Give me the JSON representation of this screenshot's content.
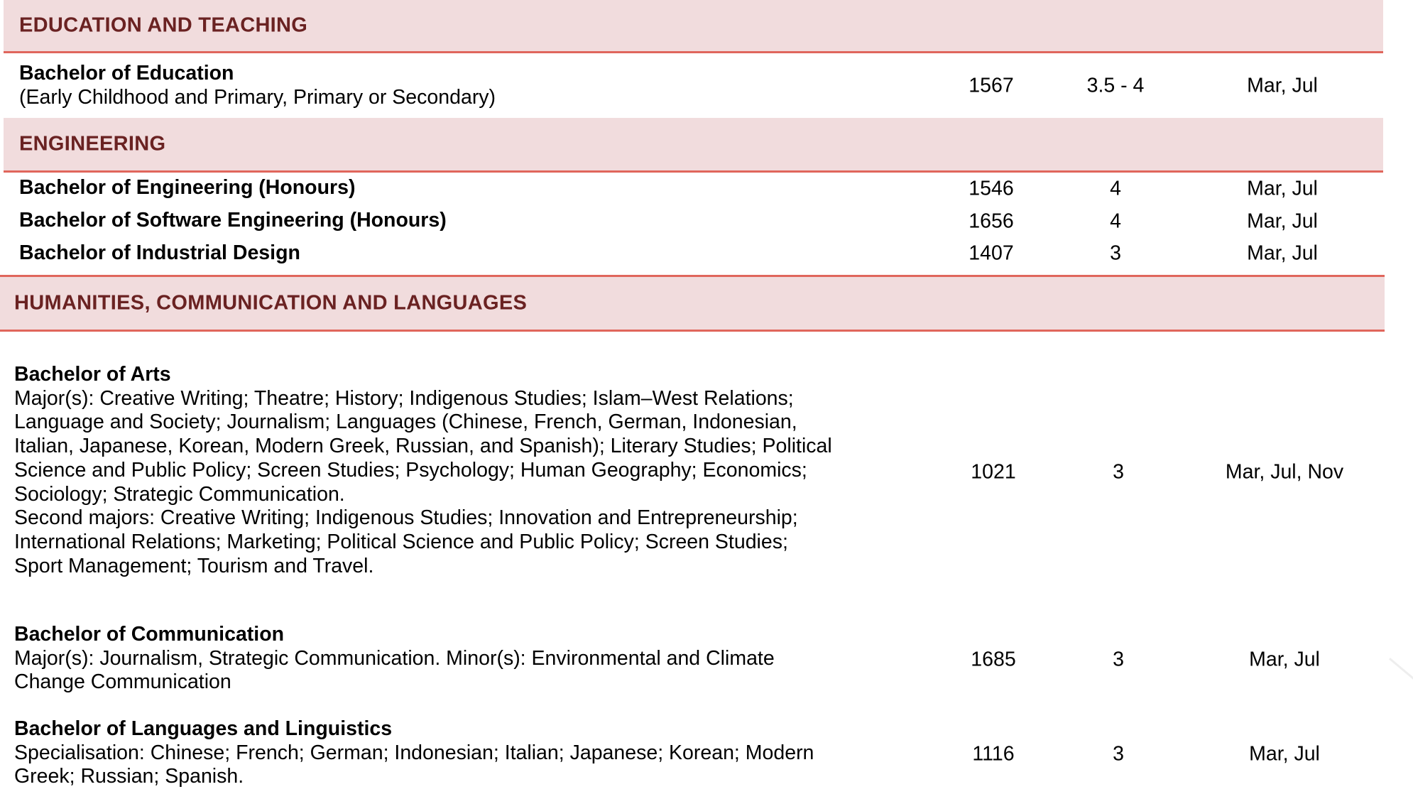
{
  "sections": [
    {
      "title": "EDUCATION AND TEACHING"
    },
    {
      "title": "ENGINEERING"
    },
    {
      "title": "HUMANITIES, COMMUNICATION AND LANGUAGES"
    }
  ],
  "rows": {
    "bed": {
      "name": "Bachelor of Education",
      "detail": "(Early Childhood and Primary, Primary or Secondary)",
      "code": "1567",
      "years": "3.5 - 4",
      "intake": "Mar, Jul"
    },
    "beng": {
      "name": "Bachelor of Engineering (Honours)",
      "code": "1546",
      "years": "4",
      "intake": "Mar, Jul"
    },
    "bse": {
      "name": "Bachelor of Software Engineering (Honours)",
      "code": "1656",
      "years": "4",
      "intake": "Mar, Jul"
    },
    "bid": {
      "name": "Bachelor of Industrial Design",
      "code": "1407",
      "years": "3",
      "intake": "Mar, Jul"
    },
    "ba": {
      "name": "Bachelor of Arts",
      "lines": [
        "Major(s): Creative Writing; Theatre; History; Indigenous Studies; Islam–West Relations;",
        "Language and Society; Journalism; Languages (Chinese, French, German, Indonesian,",
        "Italian, Japanese, Korean, Modern Greek, Russian, and Spanish); Literary Studies; Political",
        "Science and Public Policy; Screen Studies; Psychology; Human Geography; Economics;",
        "Sociology; Strategic Communication.",
        "Second majors: Creative Writing; Indigenous Studies; Innovation and Entrepreneurship;",
        "International Relations; Marketing; Political Science and Public Policy; Screen Studies;",
        "Sport Management; Tourism and Travel."
      ],
      "code": "1021",
      "years": "3",
      "intake": "Mar, Jul, Nov"
    },
    "bcomm": {
      "name": "Bachelor of Communication",
      "lines": [
        "Major(s): Journalism, Strategic Communication. Minor(s): Environmental and Climate",
        "Change Communication"
      ],
      "code": "1685",
      "years": "3",
      "intake": "Mar, Jul"
    },
    "bll": {
      "name": "Bachelor of Languages and Linguistics",
      "lines": [
        "Specialisation: Chinese; French; German; Indonesian; Italian; Japanese; Korean; Modern",
        "Greek; Russian; Spanish."
      ],
      "code": "1116",
      "years": "3",
      "intake": "Mar, Jul"
    }
  }
}
